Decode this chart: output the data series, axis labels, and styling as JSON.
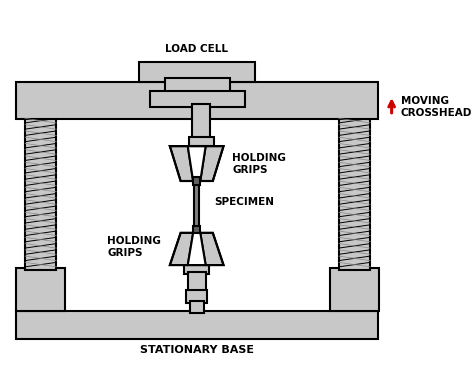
{
  "background_color": "#ffffff",
  "fill_color": "#c8c8c8",
  "fill_dark": "#b0b0b0",
  "edge_color": "#000000",
  "white": "#ffffff",
  "arrow_color": "#cc0000",
  "labels": {
    "load_cell": "LOAD CELL",
    "moving_crosshead": "MOVING\nCROSSHEAD",
    "holding_grips_top": "HOLDING\nGRIPS",
    "specimen": "SPECIMEN",
    "holding_grips_bottom": "HOLDING\nGRIPS",
    "stationary_base": "STATIONARY BASE"
  },
  "fontsize": 7.5,
  "fontweight": "bold"
}
